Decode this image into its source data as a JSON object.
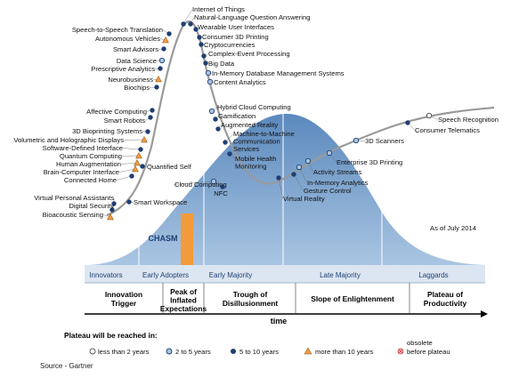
{
  "as_of": "As of July 2014",
  "chasm_label": "CHASM",
  "adopter_groups": [
    "Innovators",
    "Early Adopters",
    "Early Majority",
    "Late Majority",
    "Laggards"
  ],
  "phases": [
    [
      "Innovation",
      "Trigger"
    ],
    [
      "Peak of",
      "Inflated",
      "Expectations"
    ],
    [
      "Trough of",
      "Disillusionment"
    ],
    [
      "Slope of Enlightenment"
    ],
    [
      "Plateau of",
      "Productivity"
    ]
  ],
  "x_axis_label": "time",
  "legend": {
    "title": "Plateau will be reached in:",
    "items": [
      "less than 2 years",
      "2 to 5 years",
      "5 to 10 years",
      "more than 10 years"
    ],
    "obsolete": [
      "obsolete",
      "before plateau"
    ]
  },
  "source": "Source - Gartner",
  "technologies": [
    {
      "name": "Internet of Things",
      "category": "5 to 10 years"
    },
    {
      "name": "Natural-Language Question Answering",
      "category": "5 to 10 years"
    },
    {
      "name": "Speech-to-Speech Translation",
      "category": "5 to 10 years"
    },
    {
      "name": "Autonomous Vehicles",
      "category": "more than 10 years"
    },
    {
      "name": "Smart Advisors",
      "category": "5 to 10 years"
    },
    {
      "name": "Data Science",
      "category": "2 to 5 years"
    },
    {
      "name": "Prescriptive Analytics",
      "category": "5 to 10 years"
    },
    {
      "name": "Neurobusiness",
      "category": "more than 10 years"
    },
    {
      "name": "Biochips",
      "category": "5 to 10 years"
    },
    {
      "name": "Wearable User Interfaces",
      "category": "5 to 10 years"
    },
    {
      "name": "Consumer 3D Printing",
      "category": "5 to 10 years"
    },
    {
      "name": "Cryptocurrencies",
      "category": "5 to 10 years"
    },
    {
      "name": "Complex-Event Processing",
      "category": "5 to 10 years"
    },
    {
      "name": "Big Data",
      "category": "5 to 10 years"
    },
    {
      "name": "In-Memory Database Management Systems",
      "category": "2 to 5 years"
    },
    {
      "name": "Content Analytics",
      "category": "2 to 5 years"
    },
    {
      "name": "Affective Computing",
      "category": "5 to 10 years"
    },
    {
      "name": "Smart Robots",
      "category": "5 to 10 years"
    },
    {
      "name": "3D Bioprinting Systems",
      "category": "5 to 10 years"
    },
    {
      "name": "Volumetric and Holographic Displays",
      "category": "more than 10 years"
    },
    {
      "name": "Software-Defined Interface",
      "category": "5 to 10 years"
    },
    {
      "name": "Quantum Computing",
      "category": "more than 10 years"
    },
    {
      "name": "Human Augmentation",
      "category": "more than 10 years"
    },
    {
      "name": "Brain-Computer Interface",
      "category": "more than 10 years"
    },
    {
      "name": "Connected Home",
      "category": "5 to 10 years"
    },
    {
      "name": "Quantified Self",
      "category": "5 to 10 years"
    },
    {
      "name": "Hybrid Cloud Computing",
      "category": "2 to 5 years"
    },
    {
      "name": "Gamification",
      "category": "5 to 10 years"
    },
    {
      "name": "Augmented Reality",
      "category": "5 to 10 years"
    },
    {
      "name": "Machine-to-Machine Communication Services",
      "category": "5 to 10 years"
    },
    {
      "name": "Mobile Health Monitoring",
      "category": "5 to 10 years"
    },
    {
      "name": "Cloud Computing",
      "category": "2 to 5 years"
    },
    {
      "name": "NFC",
      "category": "5 to 10 years"
    },
    {
      "name": "Virtual Reality",
      "category": "5 to 10 years"
    },
    {
      "name": "Gesture Control",
      "category": "5 to 10 years"
    },
    {
      "name": "In-Memory Analytics",
      "category": "2 to 5 years"
    },
    {
      "name": "Activity Streams",
      "category": "2 to 5 years"
    },
    {
      "name": "Enterprise 3D Printing",
      "category": "2 to 5 years"
    },
    {
      "name": "3D Scanners",
      "category": "2 to 5 years"
    },
    {
      "name": "Consumer Telematics",
      "category": "5 to 10 years"
    },
    {
      "name": "Speech Recognition",
      "category": "less than 2 years"
    },
    {
      "name": "Virtual Personal Assistants",
      "category": "5 to 10 years"
    },
    {
      "name": "Digital Security",
      "category": "5 to 10 years"
    },
    {
      "name": "Bioacoustic Sensing",
      "category": "more than 10 years"
    },
    {
      "name": "Smart Workspace",
      "category": "5 to 10 years"
    }
  ]
}
